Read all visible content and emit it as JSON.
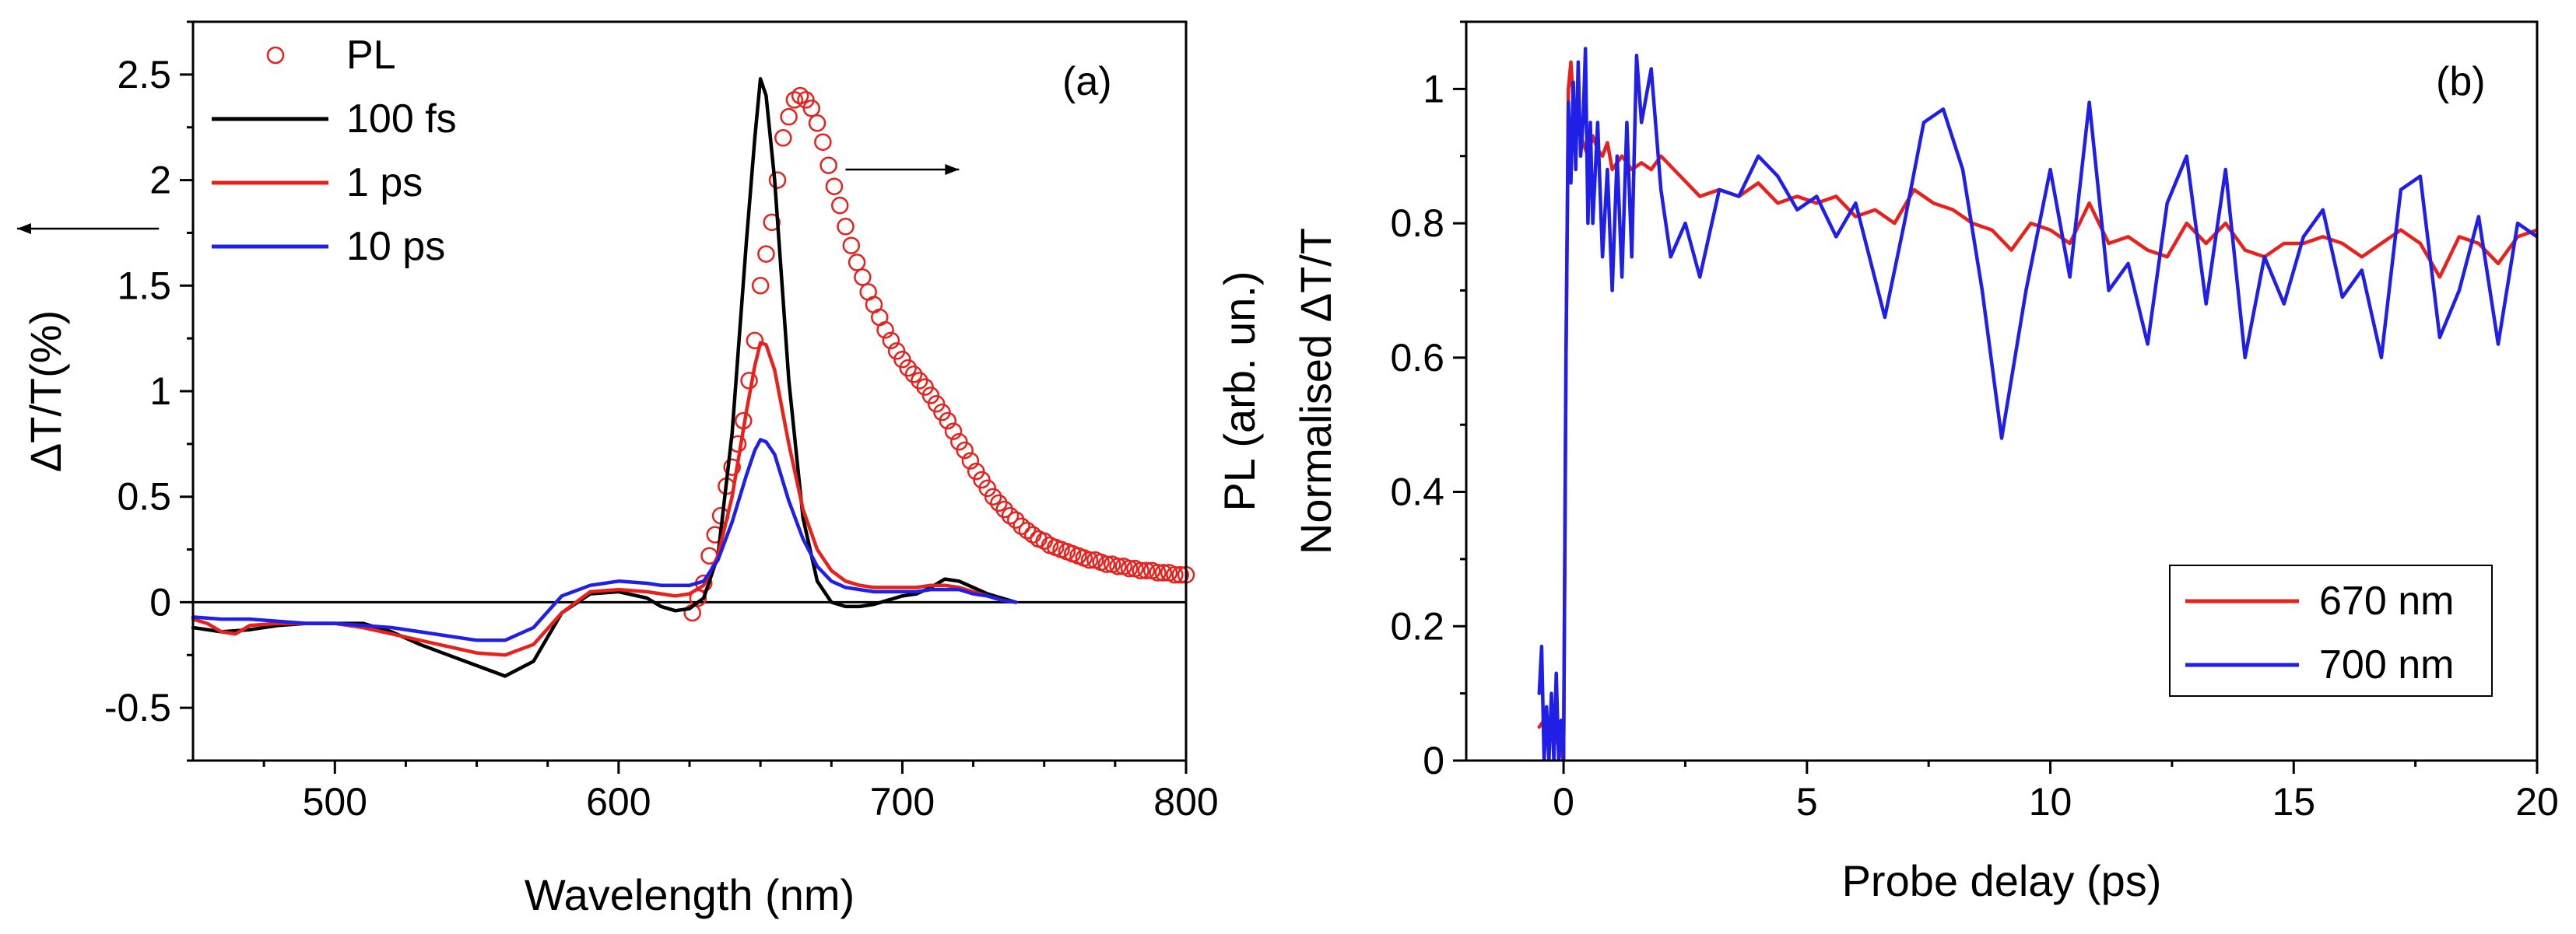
{
  "chart_data": [
    {
      "type": "line",
      "panel_label": "(a)",
      "xlabel": "Wavelength (nm)",
      "ylabel": "ΔT/T(%)",
      "xlim": [
        450,
        800
      ],
      "ylim": [
        -0.75,
        2.75
      ],
      "xticks": [
        500,
        600,
        700,
        800
      ],
      "yticks": [
        -0.5,
        0,
        0.5,
        1,
        1.5,
        2,
        2.5
      ],
      "ytick_labels": [
        "-0.5",
        "0",
        "0.5",
        "1",
        "1.5",
        "2",
        "2.5"
      ],
      "zero_line": true,
      "legend_position": "top-left",
      "legend": [
        "PL",
        "100 fs",
        "1 ps",
        "10 ps"
      ],
      "arrows": [
        {
          "direction": "left",
          "points_to_axis": "left",
          "from": [
            438,
            1.77
          ],
          "to": [
            388,
            1.77
          ]
        },
        {
          "direction": "right",
          "points_to_axis": "right",
          "from": [
            680,
            2.05
          ],
          "to": [
            720,
            2.05
          ]
        }
      ],
      "series": [
        {
          "name": "PL",
          "style": "markers",
          "marker": "open-circle",
          "color": "#e8211c",
          "x": [
            626,
            628,
            630,
            632,
            634,
            636,
            638,
            640,
            642,
            644,
            646,
            648,
            650,
            652,
            654,
            656,
            658,
            660,
            662,
            664,
            666,
            668,
            670,
            672,
            674,
            676,
            678,
            680,
            682,
            684,
            686,
            688,
            690,
            692,
            694,
            696,
            698,
            700,
            702,
            704,
            706,
            708,
            710,
            712,
            714,
            716,
            718,
            720,
            722,
            724,
            726,
            728,
            730,
            732,
            734,
            736,
            738,
            740,
            742,
            744,
            746,
            748,
            750,
            752,
            754,
            756,
            758,
            760,
            762,
            764,
            766,
            768,
            770,
            772,
            774,
            776,
            778,
            780,
            782,
            784,
            786,
            788,
            790,
            792,
            794,
            796,
            798,
            800
          ],
          "y": [
            -0.05,
            0.02,
            0.09,
            0.22,
            0.32,
            0.41,
            0.55,
            0.64,
            0.75,
            0.86,
            1.05,
            1.24,
            1.5,
            1.65,
            1.8,
            2.0,
            2.2,
            2.3,
            2.38,
            2.4,
            2.38,
            2.34,
            2.27,
            2.18,
            2.07,
            1.97,
            1.88,
            1.78,
            1.69,
            1.61,
            1.54,
            1.47,
            1.41,
            1.35,
            1.29,
            1.24,
            1.19,
            1.15,
            1.11,
            1.08,
            1.05,
            1.02,
            0.98,
            0.94,
            0.9,
            0.86,
            0.81,
            0.76,
            0.72,
            0.67,
            0.62,
            0.58,
            0.54,
            0.5,
            0.47,
            0.44,
            0.41,
            0.39,
            0.36,
            0.34,
            0.32,
            0.3,
            0.29,
            0.27,
            0.26,
            0.25,
            0.24,
            0.23,
            0.22,
            0.21,
            0.2,
            0.2,
            0.19,
            0.18,
            0.18,
            0.17,
            0.17,
            0.16,
            0.16,
            0.15,
            0.15,
            0.15,
            0.14,
            0.14,
            0.14,
            0.13,
            0.13,
            0.13
          ]
        },
        {
          "name": "100 fs",
          "style": "line",
          "color": "#000000",
          "x": [
            450,
            460,
            470,
            480,
            490,
            500,
            510,
            520,
            530,
            540,
            550,
            560,
            570,
            580,
            590,
            600,
            610,
            615,
            620,
            625,
            630,
            635,
            640,
            645,
            648,
            650,
            652,
            655,
            660,
            665,
            670,
            675,
            680,
            685,
            690,
            695,
            700,
            705,
            710,
            715,
            720,
            725,
            730,
            735,
            740
          ],
          "y": [
            -0.12,
            -0.14,
            -0.13,
            -0.11,
            -0.1,
            -0.1,
            -0.1,
            -0.14,
            -0.2,
            -0.25,
            -0.3,
            -0.35,
            -0.28,
            -0.05,
            0.04,
            0.05,
            0.02,
            -0.02,
            -0.04,
            -0.03,
            0.02,
            0.22,
            0.8,
            1.7,
            2.2,
            2.48,
            2.4,
            2.0,
            1.05,
            0.4,
            0.1,
            0.0,
            -0.02,
            -0.02,
            -0.01,
            0.01,
            0.03,
            0.04,
            0.07,
            0.11,
            0.1,
            0.07,
            0.04,
            0.02,
            0.0
          ]
        },
        {
          "name": "1 ps",
          "style": "line",
          "color": "#e8211c",
          "x": [
            450,
            455,
            460,
            465,
            470,
            480,
            490,
            500,
            510,
            520,
            530,
            540,
            550,
            560,
            570,
            580,
            590,
            600,
            610,
            615,
            620,
            625,
            630,
            635,
            640,
            645,
            648,
            650,
            652,
            655,
            660,
            665,
            670,
            675,
            680,
            685,
            690,
            695,
            700,
            705,
            710,
            715,
            720,
            725,
            730,
            735,
            740
          ],
          "y": [
            -0.08,
            -0.1,
            -0.14,
            -0.15,
            -0.11,
            -0.1,
            -0.1,
            -0.1,
            -0.12,
            -0.15,
            -0.18,
            -0.21,
            -0.24,
            -0.25,
            -0.2,
            -0.05,
            0.05,
            0.06,
            0.05,
            0.04,
            0.03,
            0.04,
            0.08,
            0.22,
            0.5,
            0.9,
            1.12,
            1.23,
            1.22,
            1.1,
            0.75,
            0.44,
            0.25,
            0.15,
            0.1,
            0.08,
            0.07,
            0.07,
            0.07,
            0.07,
            0.08,
            0.08,
            0.07,
            0.05,
            0.03,
            0.01,
            0.0
          ]
        },
        {
          "name": "10 ps",
          "style": "line",
          "color": "#1f1fe8",
          "x": [
            450,
            460,
            470,
            480,
            490,
            500,
            510,
            520,
            530,
            540,
            550,
            560,
            570,
            580,
            590,
            600,
            610,
            615,
            620,
            625,
            630,
            635,
            640,
            645,
            648,
            650,
            652,
            655,
            660,
            665,
            670,
            675,
            680,
            685,
            690,
            695,
            700,
            705,
            710,
            715,
            720,
            725,
            730,
            735,
            740
          ],
          "y": [
            -0.07,
            -0.08,
            -0.08,
            -0.09,
            -0.1,
            -0.1,
            -0.11,
            -0.12,
            -0.14,
            -0.16,
            -0.18,
            -0.18,
            -0.12,
            0.03,
            0.08,
            0.1,
            0.09,
            0.08,
            0.08,
            0.08,
            0.1,
            0.2,
            0.38,
            0.6,
            0.72,
            0.77,
            0.76,
            0.7,
            0.48,
            0.3,
            0.17,
            0.1,
            0.07,
            0.06,
            0.05,
            0.05,
            0.05,
            0.05,
            0.06,
            0.06,
            0.06,
            0.04,
            0.03,
            0.01,
            0.0
          ]
        }
      ]
    },
    {
      "type": "line",
      "panel_label": "(b)",
      "xlabel": "Probe delay (ps)",
      "ylabel_outer": "PL (arb. un.)",
      "ylabel_inner": "Normalised ΔT/T",
      "xlim": [
        -2,
        20
      ],
      "ylim": [
        0,
        1.1
      ],
      "xticks": [
        0,
        5,
        10,
        15,
        20
      ],
      "yticks": [
        0,
        0.2,
        0.4,
        0.6,
        0.8,
        1
      ],
      "ytick_labels": [
        "0",
        "0.2",
        "0.4",
        "0.6",
        "0.8",
        "1"
      ],
      "legend_position": "bottom-right",
      "legend": [
        "670 nm",
        "700 nm"
      ],
      "series": [
        {
          "name": "670 nm",
          "style": "line",
          "color": "#e8211c",
          "x": [
            -0.5,
            -0.4,
            -0.3,
            -0.2,
            -0.1,
            0.0,
            0.05,
            0.1,
            0.15,
            0.2,
            0.3,
            0.4,
            0.5,
            0.6,
            0.7,
            0.8,
            0.9,
            1.0,
            1.2,
            1.4,
            1.6,
            1.8,
            2.0,
            2.4,
            2.8,
            3.2,
            3.6,
            4.0,
            4.4,
            4.8,
            5.2,
            5.6,
            6.0,
            6.4,
            6.8,
            7.2,
            7.6,
            8.0,
            8.4,
            8.8,
            9.2,
            9.6,
            10.0,
            10.4,
            10.8,
            11.2,
            11.6,
            12.0,
            12.4,
            12.8,
            13.2,
            13.6,
            14.0,
            14.4,
            14.8,
            15.2,
            15.6,
            16.0,
            16.4,
            16.8,
            17.2,
            17.6,
            18.0,
            18.4,
            18.8,
            19.2,
            19.6,
            20.0
          ],
          "y": [
            0.05,
            0.06,
            0.04,
            0.05,
            0.02,
            0.0,
            0.6,
            1.0,
            1.04,
            0.98,
            0.94,
            0.92,
            0.9,
            0.93,
            0.91,
            0.9,
            0.92,
            0.88,
            0.9,
            0.88,
            0.89,
            0.88,
            0.9,
            0.87,
            0.84,
            0.85,
            0.84,
            0.86,
            0.83,
            0.84,
            0.83,
            0.84,
            0.81,
            0.82,
            0.8,
            0.85,
            0.83,
            0.82,
            0.8,
            0.79,
            0.76,
            0.8,
            0.79,
            0.77,
            0.83,
            0.77,
            0.78,
            0.76,
            0.75,
            0.8,
            0.77,
            0.8,
            0.76,
            0.75,
            0.77,
            0.77,
            0.78,
            0.77,
            0.75,
            0.77,
            0.79,
            0.77,
            0.72,
            0.78,
            0.77,
            0.74,
            0.78,
            0.79
          ]
        },
        {
          "name": "700 nm",
          "style": "line",
          "color": "#1f1fe8",
          "x": [
            -0.5,
            -0.45,
            -0.4,
            -0.35,
            -0.3,
            -0.25,
            -0.2,
            -0.15,
            -0.1,
            -0.05,
            0.0,
            0.05,
            0.1,
            0.15,
            0.2,
            0.25,
            0.3,
            0.35,
            0.4,
            0.45,
            0.5,
            0.55,
            0.6,
            0.7,
            0.8,
            0.9,
            1.0,
            1.1,
            1.2,
            1.3,
            1.4,
            1.5,
            1.6,
            1.8,
            2.0,
            2.2,
            2.5,
            2.8,
            3.2,
            3.6,
            4.0,
            4.4,
            4.8,
            5.2,
            5.6,
            6.0,
            6.6,
            7.0,
            7.4,
            7.8,
            8.2,
            8.6,
            9.0,
            9.5,
            10.0,
            10.4,
            10.8,
            11.2,
            11.6,
            12.0,
            12.4,
            12.8,
            13.2,
            13.6,
            14.0,
            14.4,
            14.8,
            15.2,
            15.6,
            16.0,
            16.4,
            16.8,
            17.2,
            17.6,
            18.0,
            18.4,
            18.8,
            19.2,
            19.6,
            20.0
          ],
          "y": [
            0.1,
            0.17,
            0.0,
            0.08,
            0.0,
            0.1,
            0.0,
            0.13,
            0.0,
            0.06,
            0.0,
            0.6,
            0.98,
            0.86,
            1.01,
            0.88,
            1.04,
            0.9,
            0.95,
            1.06,
            0.8,
            0.95,
            0.8,
            0.95,
            0.75,
            0.88,
            0.7,
            0.9,
            0.72,
            0.95,
            0.75,
            1.05,
            0.95,
            1.03,
            0.85,
            0.75,
            0.8,
            0.72,
            0.85,
            0.84,
            0.9,
            0.87,
            0.82,
            0.84,
            0.78,
            0.83,
            0.66,
            0.8,
            0.95,
            0.97,
            0.88,
            0.7,
            0.48,
            0.7,
            0.88,
            0.72,
            0.98,
            0.7,
            0.74,
            0.62,
            0.83,
            0.9,
            0.68,
            0.88,
            0.6,
            0.75,
            0.68,
            0.78,
            0.82,
            0.69,
            0.73,
            0.6,
            0.85,
            0.87,
            0.63,
            0.7,
            0.81,
            0.62,
            0.8,
            0.78
          ]
        }
      ]
    }
  ]
}
